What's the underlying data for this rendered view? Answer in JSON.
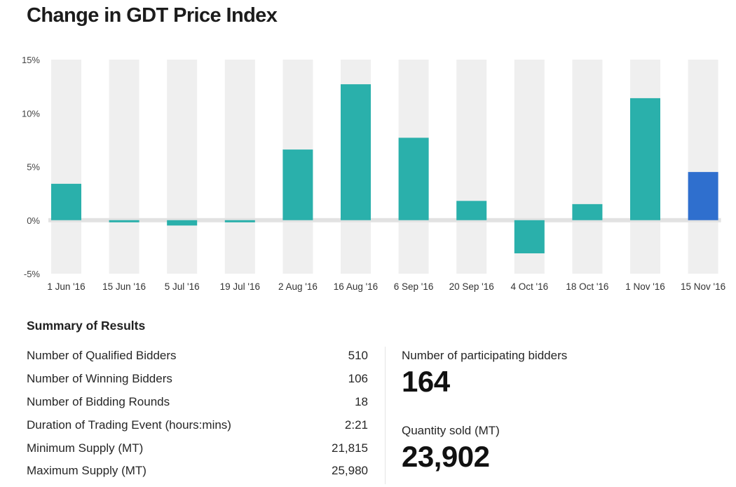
{
  "title": "Change in GDT Price Index",
  "chart_data": {
    "type": "bar",
    "title": "Change in GDT Price Index",
    "categories": [
      "1 Jun '16",
      "15 Jun '16",
      "5 Jul '16",
      "19 Jul '16",
      "2 Aug '16",
      "16 Aug '16",
      "6 Sep '16",
      "20 Sep '16",
      "4 Oct '16",
      "18 Oct '16",
      "1 Nov '16",
      "15 Nov '16"
    ],
    "values": [
      3.4,
      -0.2,
      -0.5,
      -0.2,
      6.6,
      12.7,
      7.7,
      1.8,
      -3.1,
      1.5,
      11.4,
      4.5
    ],
    "ylim": [
      -5,
      15
    ],
    "yticks": [
      15,
      10,
      5,
      0,
      -5
    ],
    "ytick_labels": [
      "15%",
      "10%",
      "5%",
      "0%",
      "-5%"
    ],
    "xlabel": "",
    "ylabel": "",
    "grid": false,
    "colors": {
      "bar": "#2ab0ab",
      "highlight": "#2f6fce",
      "band": "#efefef",
      "zero_line": "#e2e2e2"
    },
    "highlight_index": 11
  },
  "summary": {
    "title": "Summary of Results",
    "rows": [
      {
        "label": "Number of Qualified Bidders",
        "value": "510"
      },
      {
        "label": "Number of Winning Bidders",
        "value": "106"
      },
      {
        "label": "Number of Bidding Rounds",
        "value": "18"
      },
      {
        "label": "Duration of Trading Event (hours:mins)",
        "value": "2:21"
      },
      {
        "label": "Minimum Supply (MT)",
        "value": "21,815"
      },
      {
        "label": "Maximum Supply (MT)",
        "value": "25,980"
      }
    ]
  },
  "stats": {
    "bidders_label": "Number of participating bidders",
    "bidders_value": "164",
    "quantity_label": "Quantity sold (MT)",
    "quantity_value": "23,902"
  }
}
